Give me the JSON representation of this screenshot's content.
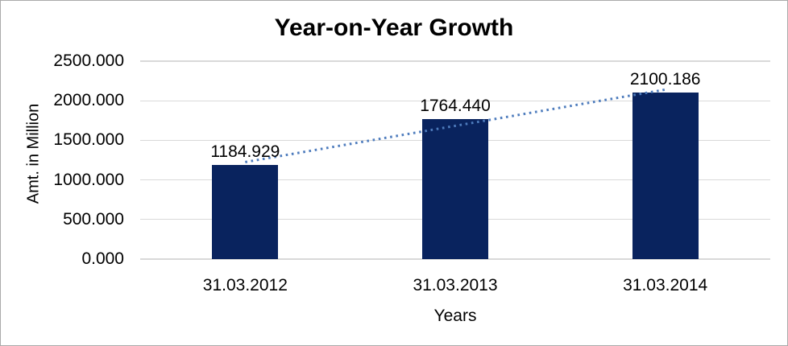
{
  "window": {
    "background": "#ffffff",
    "border_color": "#aaaaaa"
  },
  "chart_data": {
    "type": "bar",
    "title": "Year-on-Year Growth",
    "xlabel": "Years",
    "ylabel": "Amt. in Million",
    "categories": [
      "31.03.2012",
      "31.03.2013",
      "31.03.2014"
    ],
    "values": [
      1184.929,
      1764.44,
      2100.186
    ],
    "data_labels": [
      "1184.929",
      "1764.440",
      "2100.186"
    ],
    "y_ticks": [
      "2500.000",
      "2000.000",
      "1500.000",
      "1000.000",
      "500.000",
      "0.000"
    ],
    "ylim": [
      0,
      2500
    ],
    "y_tick_step": 500,
    "grid": true,
    "legend": "none",
    "colors": {
      "bar": "#09235e",
      "trendline": "#4e7cbd",
      "gridline": "#d9d9d9",
      "text": "#000000"
    },
    "trendline": {
      "type": "linear",
      "style": "dotted",
      "fit_values": [
        1225.556,
        1683.185,
        2140.814
      ]
    }
  }
}
